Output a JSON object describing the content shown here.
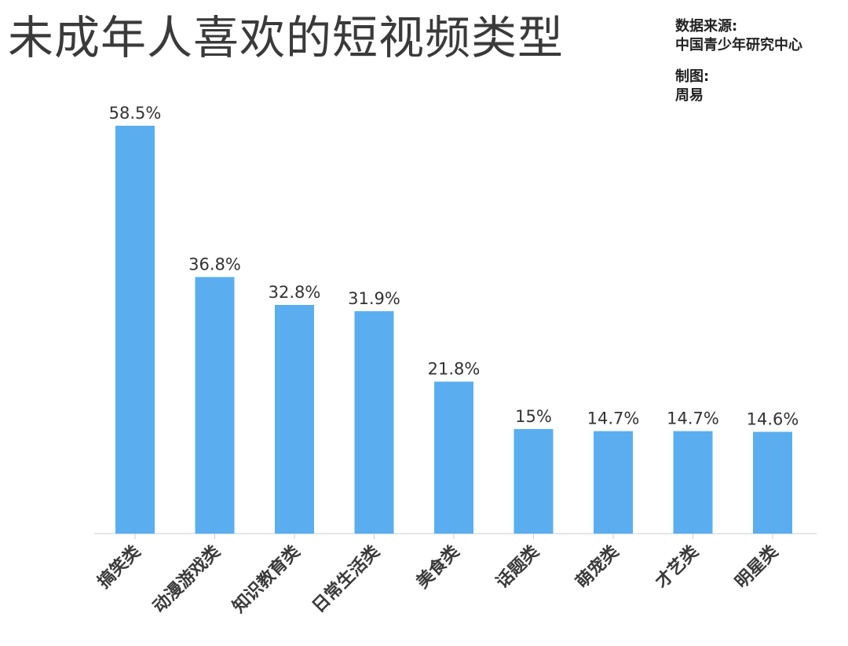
{
  "title": "未成年人喜欢的短视频类型",
  "source": {
    "label": "数据来源:",
    "value": "中国青少年研究中心",
    "maker_label": "制图:",
    "maker": "周易"
  },
  "colors": {
    "bar": "#5aaef0",
    "axis": "#cccccc",
    "text": "#333333"
  },
  "chart_data": {
    "type": "bar",
    "title": "未成年人喜欢的短视频类型",
    "xlabel": "",
    "ylabel": "",
    "unit": "%",
    "ylim": [
      0,
      60
    ],
    "grid": false,
    "categories": [
      "搞笑类",
      "动漫游戏类",
      "知识教育类",
      "日常生活类",
      "美食类",
      "话题类",
      "萌宠类",
      "才艺类",
      "明星类"
    ],
    "values": [
      58.5,
      36.8,
      32.8,
      31.9,
      21.8,
      15,
      14.7,
      14.7,
      14.6
    ],
    "labels": [
      "58.5%",
      "36.8%",
      "32.8%",
      "31.9%",
      "21.8%",
      "15%",
      "14.7%",
      "14.7%",
      "14.6%"
    ]
  }
}
